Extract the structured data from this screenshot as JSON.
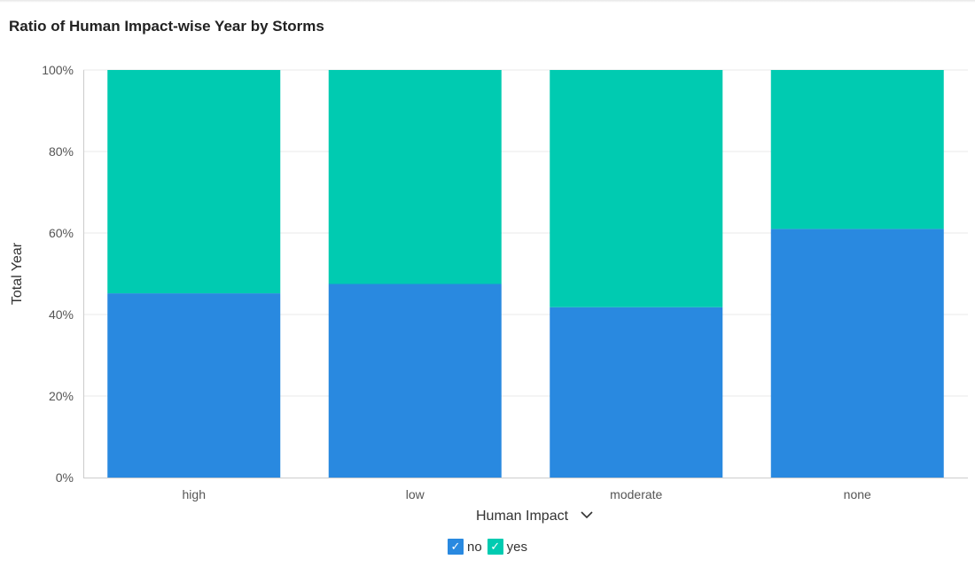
{
  "chart_data": {
    "type": "bar",
    "stacked": true,
    "normalized": true,
    "title": "Ratio of Human Impact-wise Year by Storms",
    "xlabel": "Human Impact",
    "ylabel": "Total Year",
    "categories": [
      "high",
      "low",
      "moderate",
      "none"
    ],
    "series": [
      {
        "name": "no",
        "values": [
          45.2,
          47.5,
          41.8,
          61.0
        ],
        "color": "#2989e0"
      },
      {
        "name": "yes",
        "values": [
          54.8,
          52.5,
          58.2,
          39.0
        ],
        "color": "#00cbb1"
      }
    ],
    "y_ticks": [
      "0%",
      "20%",
      "40%",
      "60%",
      "80%",
      "100%"
    ],
    "ylim": [
      0,
      100
    ],
    "grid": true,
    "legend_position": "bottom-center"
  },
  "ui": {
    "xlabel_dropdown_icon": "chevron-down-icon",
    "legend_check_icon": "checkmark-icon",
    "check_glyph": "✓"
  }
}
